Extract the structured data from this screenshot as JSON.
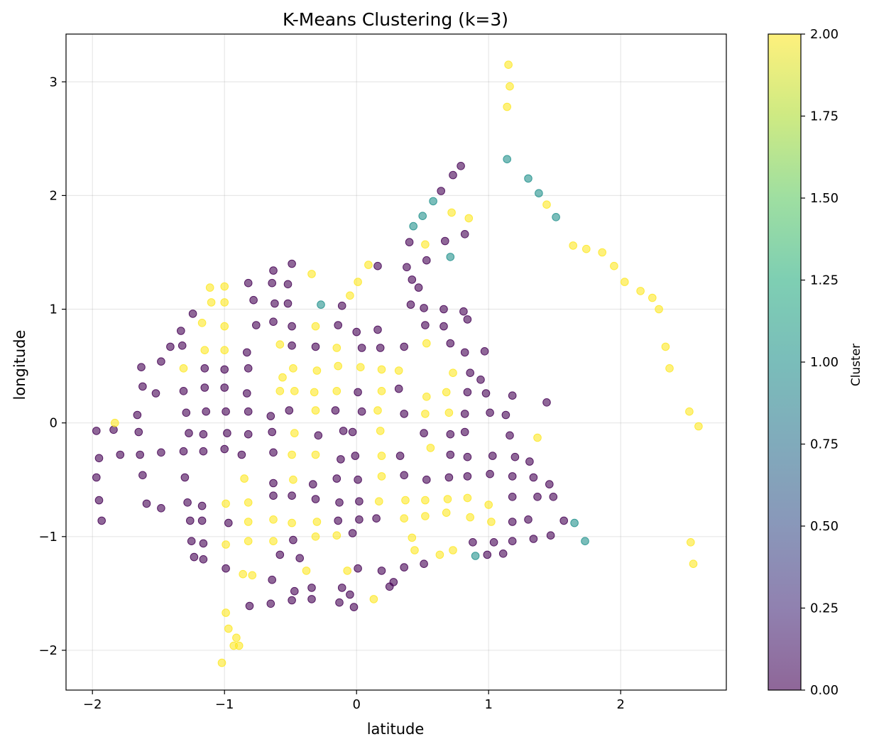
{
  "chart_data": {
    "type": "scatter",
    "title": "K-Means Clustering (k=3)",
    "xlabel": "latitude",
    "ylabel": "longitude",
    "xlim": [
      -2.2,
      2.8
    ],
    "ylim": [
      -2.35,
      3.42
    ],
    "xticks": [
      -2,
      -1,
      0,
      1,
      2
    ],
    "xtick_labels": [
      "−2",
      "−1",
      "0",
      "1",
      "2"
    ],
    "yticks": [
      -2,
      -1,
      0,
      1,
      2,
      3
    ],
    "ytick_labels": [
      "−2",
      "−1",
      "0",
      "1",
      "2",
      "3"
    ],
    "grid": true,
    "colormap": "viridis",
    "point_alpha": 0.6,
    "colorbar": {
      "label": "Cluster",
      "min": 0.0,
      "max": 2.0,
      "ticks": [
        0.0,
        0.25,
        0.5,
        0.75,
        1.0,
        1.25,
        1.5,
        1.75,
        2.0
      ],
      "tick_labels": [
        "0.00",
        "0.25",
        "0.50",
        "0.75",
        "1.00",
        "1.25",
        "1.50",
        "1.75",
        "2.00"
      ]
    },
    "colors": {
      "cluster_0": "#440154",
      "cluster_1": "#21918c",
      "cluster_2": "#fde725"
    },
    "points": [
      [
        -1.97,
        -0.07,
        0
      ],
      [
        -1.84,
        -0.06,
        0
      ],
      [
        -1.95,
        -0.31,
        0
      ],
      [
        -1.79,
        -0.28,
        0
      ],
      [
        -1.97,
        -0.48,
        0
      ],
      [
        -1.95,
        -0.68,
        0
      ],
      [
        -1.93,
        -0.86,
        0
      ],
      [
        -1.66,
        0.07,
        0
      ],
      [
        -1.62,
        0.32,
        0
      ],
      [
        -1.63,
        0.49,
        0
      ],
      [
        -1.52,
        0.26,
        0
      ],
      [
        -1.48,
        0.54,
        0
      ],
      [
        -1.41,
        0.67,
        0
      ],
      [
        -1.33,
        0.81,
        0
      ],
      [
        -1.32,
        0.68,
        0
      ],
      [
        -1.24,
        0.96,
        0
      ],
      [
        -1.65,
        -0.08,
        0
      ],
      [
        -1.64,
        -0.28,
        0
      ],
      [
        -1.62,
        -0.46,
        0
      ],
      [
        -1.59,
        -0.71,
        0
      ],
      [
        -1.48,
        -0.26,
        0
      ],
      [
        -1.48,
        -0.75,
        0
      ],
      [
        -1.31,
        0.28,
        0
      ],
      [
        -1.29,
        0.09,
        0
      ],
      [
        -1.27,
        -0.09,
        0
      ],
      [
        -1.31,
        -0.25,
        0
      ],
      [
        -1.3,
        -0.48,
        0
      ],
      [
        -1.28,
        -0.7,
        0
      ],
      [
        -1.26,
        -0.86,
        0
      ],
      [
        -1.25,
        -1.04,
        0
      ],
      [
        -1.23,
        -1.18,
        0
      ],
      [
        -1.15,
        0.48,
        0
      ],
      [
        -1.15,
        0.31,
        0
      ],
      [
        -1.14,
        0.1,
        0
      ],
      [
        -1.16,
        -0.1,
        0
      ],
      [
        -1.16,
        -0.25,
        0
      ],
      [
        -1.17,
        -0.73,
        0
      ],
      [
        -1.17,
        -0.86,
        0
      ],
      [
        -1.16,
        -1.06,
        0
      ],
      [
        -1.16,
        -1.2,
        0
      ],
      [
        -1.0,
        0.47,
        0
      ],
      [
        -1.0,
        0.31,
        0
      ],
      [
        -0.99,
        0.1,
        0
      ],
      [
        -0.98,
        -0.09,
        0
      ],
      [
        -1.0,
        -0.23,
        0
      ],
      [
        -0.97,
        -0.88,
        0
      ],
      [
        -0.99,
        -1.28,
        0
      ],
      [
        -0.82,
        1.23,
        0
      ],
      [
        -0.78,
        1.08,
        0
      ],
      [
        -0.76,
        0.86,
        0
      ],
      [
        -0.83,
        0.62,
        0
      ],
      [
        -0.82,
        0.48,
        0
      ],
      [
        -0.83,
        0.26,
        0
      ],
      [
        -0.82,
        0.1,
        0
      ],
      [
        -0.82,
        -0.1,
        0
      ],
      [
        -0.87,
        -0.28,
        0
      ],
      [
        -0.81,
        -1.61,
        0
      ],
      [
        -0.63,
        1.34,
        0
      ],
      [
        -0.64,
        1.23,
        0
      ],
      [
        -0.62,
        1.05,
        0
      ],
      [
        -0.63,
        0.89,
        0
      ],
      [
        -0.65,
        0.06,
        0
      ],
      [
        -0.64,
        -0.08,
        0
      ],
      [
        -0.63,
        -0.26,
        0
      ],
      [
        -0.63,
        -0.53,
        0
      ],
      [
        -0.63,
        -0.64,
        0
      ],
      [
        -0.58,
        -1.16,
        0
      ],
      [
        -0.64,
        -1.38,
        0
      ],
      [
        -0.65,
        -1.59,
        0
      ],
      [
        -0.49,
        1.4,
        0
      ],
      [
        -0.52,
        1.22,
        0
      ],
      [
        -0.52,
        1.05,
        0
      ],
      [
        -0.49,
        0.85,
        0
      ],
      [
        -0.49,
        0.68,
        0
      ],
      [
        -0.51,
        0.11,
        0
      ],
      [
        -0.49,
        -0.64,
        0
      ],
      [
        -0.48,
        -1.03,
        0
      ],
      [
        -0.47,
        -1.48,
        0
      ],
      [
        -0.49,
        -1.56,
        0
      ],
      [
        -0.43,
        -1.19,
        0
      ],
      [
        -0.31,
        0.67,
        0
      ],
      [
        -0.33,
        -0.54,
        0
      ],
      [
        -0.31,
        -0.67,
        0
      ],
      [
        -0.34,
        -1.45,
        0
      ],
      [
        -0.34,
        -1.55,
        0
      ],
      [
        -0.29,
        -0.11,
        0
      ],
      [
        -0.11,
        1.03,
        0
      ],
      [
        -0.14,
        0.86,
        0
      ],
      [
        -0.16,
        0.11,
        0
      ],
      [
        -0.1,
        -0.07,
        0
      ],
      [
        -0.12,
        -0.32,
        0
      ],
      [
        -0.15,
        -0.49,
        0
      ],
      [
        -0.13,
        -0.7,
        0
      ],
      [
        -0.14,
        -0.86,
        0
      ],
      [
        -0.11,
        -1.45,
        0
      ],
      [
        -0.13,
        -1.58,
        0
      ],
      [
        -0.05,
        -1.51,
        0
      ],
      [
        -0.03,
        -0.97,
        0
      ],
      [
        -0.03,
        -0.08,
        0
      ],
      [
        -0.01,
        -0.29,
        0
      ],
      [
        0.01,
        0.27,
        0
      ],
      [
        0.01,
        -0.5,
        0
      ],
      [
        0.02,
        -0.69,
        0
      ],
      [
        0.02,
        -0.85,
        0
      ],
      [
        0.01,
        -1.28,
        0
      ],
      [
        -0.02,
        -1.62,
        0
      ],
      [
        0.0,
        0.8,
        0
      ],
      [
        0.04,
        0.66,
        0
      ],
      [
        0.04,
        0.1,
        0
      ],
      [
        0.16,
        1.38,
        0
      ],
      [
        0.16,
        0.82,
        0
      ],
      [
        0.18,
        0.66,
        0
      ],
      [
        0.15,
        -0.84,
        0
      ],
      [
        0.19,
        -1.3,
        0
      ],
      [
        0.25,
        -1.44,
        0
      ],
      [
        0.28,
        -1.4,
        0
      ],
      [
        0.36,
        0.67,
        0
      ],
      [
        0.32,
        0.3,
        0
      ],
      [
        0.36,
        0.08,
        0
      ],
      [
        0.33,
        -0.29,
        0
      ],
      [
        0.36,
        -0.46,
        0
      ],
      [
        0.36,
        -1.27,
        0
      ],
      [
        0.38,
        1.37,
        0
      ],
      [
        0.41,
        1.04,
        0
      ],
      [
        0.4,
        1.59,
        0
      ],
      [
        0.42,
        1.26,
        0
      ],
      [
        0.47,
        1.19,
        0
      ],
      [
        0.51,
        1.01,
        0
      ],
      [
        0.52,
        0.86,
        0
      ],
      [
        0.53,
        1.43,
        0
      ],
      [
        0.51,
        -0.09,
        0
      ],
      [
        0.53,
        -0.5,
        0
      ],
      [
        0.51,
        -1.24,
        0
      ],
      [
        0.64,
        2.04,
        0
      ],
      [
        0.73,
        2.18,
        0
      ],
      [
        0.79,
        2.26,
        0
      ],
      [
        0.67,
        1.6,
        0
      ],
      [
        0.66,
        1.0,
        0
      ],
      [
        0.66,
        0.85,
        0
      ],
      [
        0.71,
        0.7,
        0
      ],
      [
        0.71,
        -0.1,
        0
      ],
      [
        0.71,
        -0.28,
        0
      ],
      [
        0.7,
        -0.48,
        0
      ],
      [
        0.82,
        1.66,
        0
      ],
      [
        0.81,
        0.98,
        0
      ],
      [
        0.84,
        0.91,
        0
      ],
      [
        0.82,
        0.62,
        0
      ],
      [
        0.86,
        0.44,
        0
      ],
      [
        0.84,
        0.27,
        0
      ],
      [
        0.82,
        0.08,
        0
      ],
      [
        0.82,
        -0.08,
        0
      ],
      [
        0.84,
        -0.3,
        0
      ],
      [
        0.84,
        -0.47,
        0
      ],
      [
        0.88,
        -1.05,
        0
      ],
      [
        0.94,
        0.38,
        0
      ],
      [
        0.98,
        0.26,
        0
      ],
      [
        1.01,
        0.09,
        0
      ],
      [
        0.97,
        0.63,
        0
      ],
      [
        1.01,
        -0.45,
        0
      ],
      [
        1.03,
        -0.29,
        0
      ],
      [
        1.04,
        -1.05,
        0
      ],
      [
        0.99,
        -1.16,
        0
      ],
      [
        1.11,
        -1.15,
        0
      ],
      [
        1.13,
        0.07,
        0
      ],
      [
        1.18,
        0.24,
        0
      ],
      [
        1.16,
        -0.11,
        0
      ],
      [
        1.2,
        -0.3,
        0
      ],
      [
        1.18,
        -0.47,
        0
      ],
      [
        1.18,
        -0.65,
        0
      ],
      [
        1.18,
        -0.87,
        0
      ],
      [
        1.18,
        -1.04,
        0
      ],
      [
        1.3,
        -0.85,
        0
      ],
      [
        1.31,
        -0.34,
        0
      ],
      [
        1.34,
        -0.48,
        0
      ],
      [
        1.37,
        -0.65,
        0
      ],
      [
        1.34,
        -1.02,
        0
      ],
      [
        1.44,
        0.18,
        0
      ],
      [
        1.46,
        -0.54,
        0
      ],
      [
        1.49,
        -0.65,
        0
      ],
      [
        1.47,
        -0.99,
        0
      ],
      [
        1.57,
        -0.86,
        0
      ],
      [
        -0.27,
        1.04,
        1
      ],
      [
        0.43,
        1.73,
        1
      ],
      [
        0.5,
        1.82,
        1
      ],
      [
        0.58,
        1.95,
        1
      ],
      [
        0.71,
        1.46,
        1
      ],
      [
        1.14,
        2.32,
        1
      ],
      [
        1.3,
        2.15,
        1
      ],
      [
        1.38,
        2.02,
        1
      ],
      [
        1.51,
        1.81,
        1
      ],
      [
        1.65,
        -0.88,
        1
      ],
      [
        1.73,
        -1.04,
        1
      ],
      [
        0.9,
        -1.17,
        1
      ],
      [
        1.15,
        3.15,
        2
      ],
      [
        1.16,
        2.96,
        2
      ],
      [
        1.14,
        2.78,
        2
      ],
      [
        0.72,
        1.85,
        2
      ],
      [
        0.85,
        1.8,
        2
      ],
      [
        1.44,
        1.92,
        2
      ],
      [
        1.64,
        1.56,
        2
      ],
      [
        1.74,
        1.53,
        2
      ],
      [
        1.86,
        1.5,
        2
      ],
      [
        1.95,
        1.38,
        2
      ],
      [
        2.03,
        1.24,
        2
      ],
      [
        2.15,
        1.16,
        2
      ],
      [
        2.24,
        1.1,
        2
      ],
      [
        2.29,
        1.0,
        2
      ],
      [
        2.34,
        0.67,
        2
      ],
      [
        2.37,
        0.48,
        2
      ],
      [
        2.52,
        0.1,
        2
      ],
      [
        2.59,
        -0.03,
        2
      ],
      [
        2.53,
        -1.05,
        2
      ],
      [
        2.55,
        -1.24,
        2
      ],
      [
        -1.83,
        0.0,
        2
      ],
      [
        -1.11,
        1.19,
        2
      ],
      [
        -1.1,
        1.06,
        2
      ],
      [
        -1.17,
        0.88,
        2
      ],
      [
        -1.15,
        0.64,
        2
      ],
      [
        -1.31,
        0.48,
        2
      ],
      [
        -1.0,
        1.2,
        2
      ],
      [
        -1.0,
        1.06,
        2
      ],
      [
        -1.0,
        0.85,
        2
      ],
      [
        -1.0,
        0.64,
        2
      ],
      [
        -0.85,
        -0.49,
        2
      ],
      [
        -0.82,
        -0.7,
        2
      ],
      [
        -0.82,
        -0.87,
        2
      ],
      [
        -0.82,
        -1.04,
        2
      ],
      [
        -0.86,
        -1.33,
        2
      ],
      [
        -0.79,
        -1.34,
        2
      ],
      [
        -0.99,
        -0.71,
        2
      ],
      [
        -0.99,
        -1.07,
        2
      ],
      [
        -0.99,
        -1.67,
        2
      ],
      [
        -0.97,
        -1.81,
        2
      ],
      [
        -0.91,
        -1.89,
        2
      ],
      [
        -0.93,
        -1.96,
        2
      ],
      [
        -0.89,
        -1.96,
        2
      ],
      [
        -1.02,
        -2.11,
        2
      ],
      [
        -0.58,
        0.69,
        2
      ],
      [
        -0.56,
        0.4,
        2
      ],
      [
        -0.58,
        0.28,
        2
      ],
      [
        -0.48,
        0.48,
        2
      ],
      [
        -0.47,
        0.28,
        2
      ],
      [
        -0.47,
        -0.09,
        2
      ],
      [
        -0.49,
        -0.28,
        2
      ],
      [
        -0.48,
        -0.5,
        2
      ],
      [
        -0.49,
        -0.88,
        2
      ],
      [
        -0.63,
        -0.85,
        2
      ],
      [
        -0.63,
        -1.04,
        2
      ],
      [
        -0.38,
        -1.3,
        2
      ],
      [
        -0.34,
        1.31,
        2
      ],
      [
        -0.31,
        0.85,
        2
      ],
      [
        -0.3,
        0.46,
        2
      ],
      [
        -0.32,
        0.27,
        2
      ],
      [
        -0.31,
        0.11,
        2
      ],
      [
        -0.31,
        -0.28,
        2
      ],
      [
        -0.3,
        -0.87,
        2
      ],
      [
        -0.31,
        -1.0,
        2
      ],
      [
        -0.15,
        0.66,
        2
      ],
      [
        -0.14,
        0.5,
        2
      ],
      [
        -0.15,
        0.28,
        2
      ],
      [
        -0.15,
        -0.99,
        2
      ],
      [
        -0.07,
        -1.3,
        2
      ],
      [
        -0.05,
        1.12,
        2
      ],
      [
        0.01,
        1.24,
        2
      ],
      [
        0.09,
        1.39,
        2
      ],
      [
        0.03,
        0.49,
        2
      ],
      [
        0.13,
        -1.55,
        2
      ],
      [
        0.16,
        0.11,
        2
      ],
      [
        0.19,
        0.28,
        2
      ],
      [
        0.19,
        0.47,
        2
      ],
      [
        0.18,
        -0.07,
        2
      ],
      [
        0.19,
        -0.29,
        2
      ],
      [
        0.19,
        -0.47,
        2
      ],
      [
        0.17,
        -0.69,
        2
      ],
      [
        0.32,
        0.46,
        2
      ],
      [
        0.37,
        -0.68,
        2
      ],
      [
        0.36,
        -0.84,
        2
      ],
      [
        0.42,
        -1.01,
        2
      ],
      [
        0.44,
        -1.12,
        2
      ],
      [
        0.52,
        1.57,
        2
      ],
      [
        0.53,
        0.7,
        2
      ],
      [
        0.53,
        0.23,
        2
      ],
      [
        0.52,
        0.08,
        2
      ],
      [
        0.56,
        -0.22,
        2
      ],
      [
        0.52,
        -0.68,
        2
      ],
      [
        0.52,
        -0.82,
        2
      ],
      [
        0.63,
        -1.16,
        2
      ],
      [
        0.68,
        0.27,
        2
      ],
      [
        0.7,
        0.09,
        2
      ],
      [
        0.73,
        0.44,
        2
      ],
      [
        0.69,
        -0.67,
        2
      ],
      [
        0.68,
        -0.79,
        2
      ],
      [
        0.73,
        -1.12,
        2
      ],
      [
        0.84,
        -0.66,
        2
      ],
      [
        0.86,
        -0.83,
        2
      ],
      [
        1.0,
        -0.72,
        2
      ],
      [
        1.02,
        -0.87,
        2
      ],
      [
        1.37,
        -0.13,
        2
      ]
    ]
  }
}
